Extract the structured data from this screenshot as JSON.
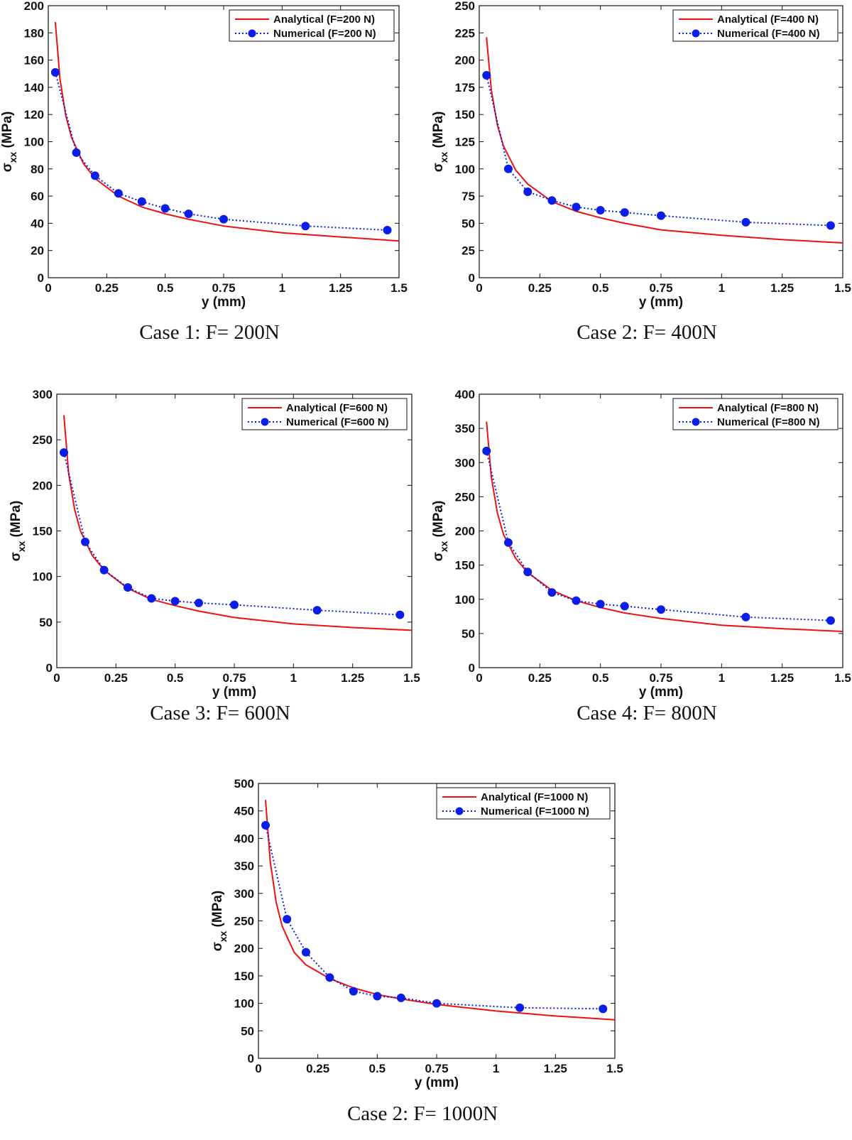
{
  "chart_data": [
    {
      "type": "line",
      "caption": "Case 1: F= 200N",
      "xlabel": "y (mm)",
      "ylabel_main": "σ",
      "ylabel_sub": "xx",
      "ylabel_unit": " (MPa)",
      "xlim": [
        0,
        1.5
      ],
      "ylim": [
        0,
        200
      ],
      "xticks": [
        0,
        0.25,
        0.5,
        0.75,
        1,
        1.25,
        1.5
      ],
      "xtick_labels": [
        "0",
        "0.25",
        "0.5",
        "0.75",
        "1",
        "1.25",
        "1.5"
      ],
      "yticks": [
        0,
        20,
        40,
        60,
        80,
        100,
        120,
        140,
        160,
        180,
        200
      ],
      "legend_position": "top-right",
      "series": [
        {
          "name": "Analytical (F=200 N)",
          "style": "line",
          "color": "#ee1111",
          "x": [
            0.03,
            0.05,
            0.075,
            0.1,
            0.15,
            0.2,
            0.3,
            0.4,
            0.5,
            0.6,
            0.75,
            1.0,
            1.25,
            1.5
          ],
          "y": [
            188,
            146,
            119,
            103,
            84,
            73,
            60,
            52,
            47,
            43,
            38,
            33,
            30,
            27
          ]
        },
        {
          "name": "Numerical (F=200 N)",
          "style": "dotted-markers",
          "color": "#0a1ee8",
          "x": [
            0.03,
            0.12,
            0.2,
            0.3,
            0.4,
            0.5,
            0.6,
            0.75,
            1.1,
            1.45
          ],
          "y": [
            151,
            92,
            75,
            62,
            56,
            51,
            47,
            43,
            38,
            35
          ]
        }
      ]
    },
    {
      "type": "line",
      "caption": "Case 2: F= 400N",
      "xlabel": "y (mm)",
      "ylabel_main": "σ",
      "ylabel_sub": "xx",
      "ylabel_unit": " (MPa)",
      "xlim": [
        0,
        1.5
      ],
      "ylim": [
        0,
        250
      ],
      "xticks": [
        0,
        0.25,
        0.5,
        0.75,
        1,
        1.25,
        1.5
      ],
      "xtick_labels": [
        "0",
        "0.25",
        "0.5",
        "0.75",
        "1",
        "1.25",
        "1.5"
      ],
      "yticks": [
        0,
        25,
        50,
        75,
        100,
        125,
        150,
        175,
        200,
        225,
        250
      ],
      "legend_position": "top-right",
      "series": [
        {
          "name": "Analytical (F=400 N)",
          "style": "line",
          "color": "#ee1111",
          "x": [
            0.03,
            0.05,
            0.075,
            0.1,
            0.15,
            0.2,
            0.3,
            0.4,
            0.5,
            0.6,
            0.75,
            1.0,
            1.25,
            1.5
          ],
          "y": [
            221,
            172,
            140,
            121,
            99,
            86,
            70,
            61,
            55,
            50,
            44,
            39,
            35,
            32
          ]
        },
        {
          "name": "Numerical (F=400 N)",
          "style": "dotted-markers",
          "color": "#0a1ee8",
          "x": [
            0.03,
            0.12,
            0.2,
            0.3,
            0.4,
            0.5,
            0.6,
            0.75,
            1.1,
            1.45
          ],
          "y": [
            186,
            100,
            79,
            71,
            65,
            62,
            60,
            57,
            51,
            48
          ]
        }
      ]
    },
    {
      "type": "line",
      "caption": "Case 3: F= 600N",
      "xlabel": "y (mm)",
      "ylabel_main": "σ",
      "ylabel_sub": "xx",
      "ylabel_unit": " (MPa)",
      "xlim": [
        0,
        1.5
      ],
      "ylim": [
        0,
        300
      ],
      "xticks": [
        0,
        0.25,
        0.5,
        0.75,
        1,
        1.25,
        1.5
      ],
      "xtick_labels": [
        "0",
        "0.25",
        "0.5",
        "0.75",
        "1",
        "1.25",
        "1.5"
      ],
      "yticks": [
        0,
        50,
        100,
        150,
        200,
        250,
        300
      ],
      "legend_position": "top-right",
      "series": [
        {
          "name": "Analytical (F=600 N)",
          "style": "line",
          "color": "#ee1111",
          "x": [
            0.03,
            0.05,
            0.075,
            0.1,
            0.15,
            0.2,
            0.3,
            0.4,
            0.5,
            0.6,
            0.75,
            1.0,
            1.25,
            1.5
          ],
          "y": [
            277,
            213,
            174,
            150,
            123,
            107,
            87,
            75,
            68,
            62,
            55,
            48,
            44,
            41
          ]
        },
        {
          "name": "Numerical (F=600 N)",
          "style": "dotted-markers",
          "color": "#0a1ee8",
          "x": [
            0.03,
            0.12,
            0.2,
            0.3,
            0.4,
            0.5,
            0.6,
            0.75,
            1.1,
            1.45
          ],
          "y": [
            236,
            138,
            107,
            88,
            76,
            73,
            71,
            69,
            63,
            58
          ]
        }
      ]
    },
    {
      "type": "line",
      "caption": "Case 4: F= 800N",
      "xlabel": "y (mm)",
      "ylabel_main": "σ",
      "ylabel_sub": "xx",
      "ylabel_unit": " (MPa)",
      "xlim": [
        0,
        1.5
      ],
      "ylim": [
        0,
        400
      ],
      "xticks": [
        0,
        0.25,
        0.5,
        0.75,
        1,
        1.25,
        1.5
      ],
      "xtick_labels": [
        "0",
        "0.25",
        "0.5",
        "0.75",
        "1",
        "1.25",
        "1.5"
      ],
      "yticks": [
        0,
        50,
        100,
        150,
        200,
        250,
        300,
        350,
        400
      ],
      "legend_position": "top-right",
      "series": [
        {
          "name": "Analytical (F=800 N)",
          "style": "line",
          "color": "#ee1111",
          "x": [
            0.03,
            0.05,
            0.075,
            0.1,
            0.15,
            0.2,
            0.3,
            0.4,
            0.5,
            0.6,
            0.75,
            1.0,
            1.25,
            1.5
          ],
          "y": [
            360,
            278,
            226,
            195,
            160,
            139,
            113,
            98,
            88,
            80,
            72,
            62,
            57,
            53
          ]
        },
        {
          "name": "Numerical (F=800 N)",
          "style": "dotted-markers",
          "color": "#0a1ee8",
          "x": [
            0.03,
            0.12,
            0.2,
            0.3,
            0.4,
            0.5,
            0.6,
            0.75,
            1.1,
            1.45
          ],
          "y": [
            317,
            183,
            140,
            110,
            98,
            93,
            90,
            85,
            74,
            69
          ]
        }
      ]
    },
    {
      "type": "line",
      "caption": "Case 2: F= 1000N",
      "xlabel": "y (mm)",
      "ylabel_main": "σ",
      "ylabel_sub": "xx",
      "ylabel_unit": " (MPa)",
      "xlim": [
        0,
        1.5
      ],
      "ylim": [
        0,
        500
      ],
      "xticks": [
        0,
        0.25,
        0.5,
        0.75,
        1,
        1.25,
        1.5
      ],
      "xtick_labels": [
        "0",
        "0.25",
        "0.5",
        "0.75",
        "1",
        "1.25",
        "1.5"
      ],
      "yticks": [
        0,
        50,
        100,
        150,
        200,
        250,
        300,
        350,
        400,
        450,
        500
      ],
      "legend_position": "top-right",
      "series": [
        {
          "name": "Analytical (F=1000 N)",
          "style": "line",
          "color": "#ee1111",
          "x": [
            0.03,
            0.05,
            0.075,
            0.1,
            0.15,
            0.2,
            0.3,
            0.4,
            0.5,
            0.6,
            0.75,
            1.0,
            1.25,
            1.5
          ],
          "y": [
            470,
            357,
            283,
            240,
            193,
            170,
            145,
            128,
            116,
            108,
            98,
            86,
            77,
            70
          ]
        },
        {
          "name": "Numerical (F=1000 N)",
          "style": "dotted-markers",
          "color": "#0a1ee8",
          "x": [
            0.03,
            0.12,
            0.2,
            0.3,
            0.4,
            0.5,
            0.6,
            0.75,
            1.1,
            1.45
          ],
          "y": [
            424,
            253,
            193,
            147,
            122,
            113,
            110,
            100,
            92,
            90
          ]
        }
      ]
    }
  ]
}
